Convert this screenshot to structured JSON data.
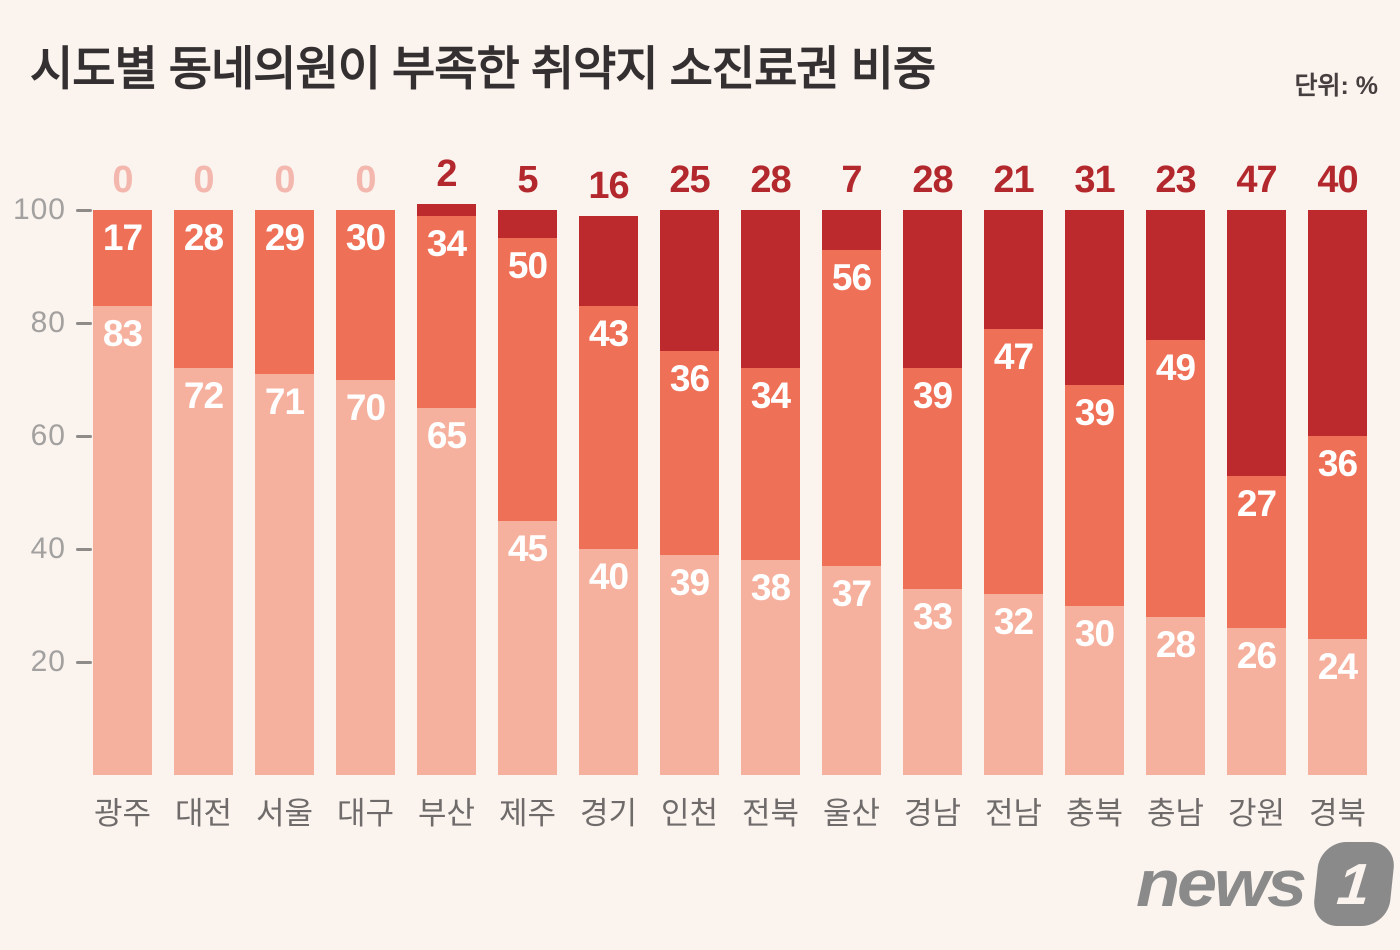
{
  "header": {
    "title": "시도별 동네의원이 부족한 취약지 소진료권 비중",
    "unit_label": "단위: %"
  },
  "chart_data": {
    "type": "bar",
    "stacked": true,
    "unit": "%",
    "title": "시도별 동네의원이 부족한 취약지 소진료권 비중",
    "categories": [
      "광주",
      "대전",
      "서울",
      "대구",
      "부산",
      "제주",
      "경기",
      "인천",
      "전북",
      "울산",
      "경남",
      "전남",
      "충북",
      "충남",
      "강원",
      "경북"
    ],
    "series": [
      {
        "name": "bottom-segment",
        "color": "#f6b19e",
        "values": [
          83,
          72,
          71,
          70,
          65,
          45,
          40,
          39,
          38,
          37,
          33,
          32,
          30,
          28,
          26,
          24
        ]
      },
      {
        "name": "middle-segment",
        "color": "#ee7057",
        "values": [
          17,
          28,
          29,
          30,
          34,
          50,
          43,
          36,
          34,
          56,
          39,
          47,
          39,
          49,
          27,
          36
        ]
      },
      {
        "name": "top-segment",
        "color": "#bd2a2e",
        "values": [
          0,
          0,
          0,
          0,
          2,
          5,
          16,
          25,
          28,
          7,
          28,
          21,
          31,
          23,
          47,
          40
        ]
      }
    ],
    "y_ticks": [
      20,
      40,
      60,
      80,
      100
    ],
    "ylim": [
      0,
      100
    ],
    "grid": false,
    "legend": "none",
    "colors": {
      "background": "#fbf3ee",
      "top_value_label": "#b3282d",
      "zero_value_label": "#f3b7ae",
      "segment_value_label": "#ffffff",
      "y_tick_text": "#a3a1a0",
      "x_tick_text": "#6e6b6a"
    }
  },
  "footer": {
    "logo_text": "news",
    "logo_badge": "1"
  }
}
